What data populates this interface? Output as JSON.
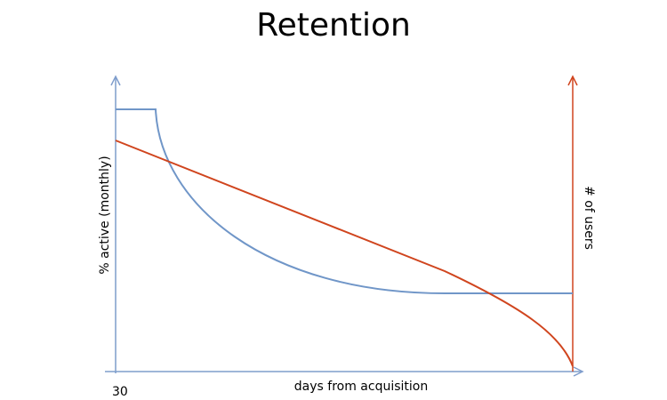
{
  "title": "Retention",
  "axes": {
    "x_label": "days from acquisition",
    "x_start": "30",
    "y_label": "% active (monthly)",
    "y2_label": "# of users"
  }
}
